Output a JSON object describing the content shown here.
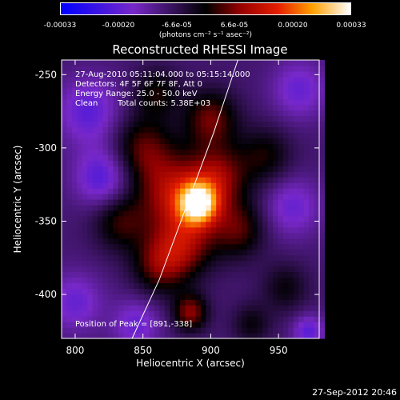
{
  "colorbar": {
    "ticks": [
      "-0.00033",
      "-0.00020",
      "-6.6e-05",
      "6.6e-05",
      "0.00020",
      "0.00033"
    ],
    "unit": "(photons cm⁻² s⁻¹ asec⁻²)",
    "vmin": -0.00033,
    "vmax": 0.00033
  },
  "chart_data": {
    "type": "heatmap",
    "title": "Reconstructed RHESSI Image",
    "xlabel": "Heliocentric X (arcsec)",
    "ylabel": "Heliocentric Y (arcsec)",
    "xlim": [
      790,
      980
    ],
    "ylim": [
      -430,
      -240
    ],
    "xticks": [
      800,
      850,
      900,
      950
    ],
    "yticks": [
      -250,
      -300,
      -350,
      -400
    ],
    "annotations": {
      "time_range": "27-Aug-2010 05:11:04.000 to 05:15:14.000",
      "detectors": "Detectors: 4F 5F 6F 7F 8F, Att 0",
      "energy": "Energy Range: 25.0 - 50.0 keV",
      "method": "Clean",
      "counts": "Total counts: 5.38E+03",
      "peak": "Position of Peak = [891,-338]"
    },
    "peak": {
      "x": 891,
      "y": -338
    },
    "limb_curve": [
      [
        842,
        -430
      ],
      [
        862,
        -390
      ],
      [
        882,
        -340
      ],
      [
        902,
        -290
      ],
      [
        920,
        -240
      ]
    ],
    "sources": [
      {
        "x": 891,
        "y": -338,
        "amp": 1.0,
        "sigma": 10
      },
      {
        "x": 872,
        "y": -330,
        "amp": 0.55,
        "sigma": 18
      },
      {
        "x": 905,
        "y": -320,
        "amp": 0.5,
        "sigma": 15
      },
      {
        "x": 880,
        "y": -365,
        "amp": 0.5,
        "sigma": 16
      },
      {
        "x": 862,
        "y": -380,
        "amp": 0.4,
        "sigma": 14
      },
      {
        "x": 920,
        "y": -355,
        "amp": 0.4,
        "sigma": 14
      },
      {
        "x": 850,
        "y": -300,
        "amp": 0.4,
        "sigma": 16
      },
      {
        "x": 900,
        "y": -280,
        "amp": 0.45,
        "sigma": 14
      },
      {
        "x": 940,
        "y": -305,
        "amp": 0.3,
        "sigma": 14
      },
      {
        "x": 885,
        "y": -412,
        "amp": 0.5,
        "sigma": 9
      },
      {
        "x": 833,
        "y": -350,
        "amp": 0.35,
        "sigma": 14
      },
      {
        "x": 955,
        "y": -395,
        "amp": 0.25,
        "sigma": 12
      },
      {
        "x": 930,
        "y": -420,
        "amp": 0.25,
        "sigma": 10
      },
      {
        "x": 860,
        "y": -262,
        "amp": 0.3,
        "sigma": 12
      },
      {
        "x": 810,
        "y": -275,
        "amp": -0.35,
        "sigma": 16
      },
      {
        "x": 820,
        "y": -320,
        "amp": -0.4,
        "sigma": 14
      },
      {
        "x": 960,
        "y": -340,
        "amp": -0.3,
        "sigma": 14
      },
      {
        "x": 800,
        "y": -405,
        "amp": -0.3,
        "sigma": 14
      },
      {
        "x": 965,
        "y": -260,
        "amp": -0.3,
        "sigma": 14
      },
      {
        "x": 972,
        "y": -425,
        "amp": -0.35,
        "sigma": 8
      },
      {
        "x": 845,
        "y": -420,
        "amp": -0.3,
        "sigma": 12
      }
    ]
  },
  "footer": {
    "date": "27-Sep-2012 20:46"
  }
}
